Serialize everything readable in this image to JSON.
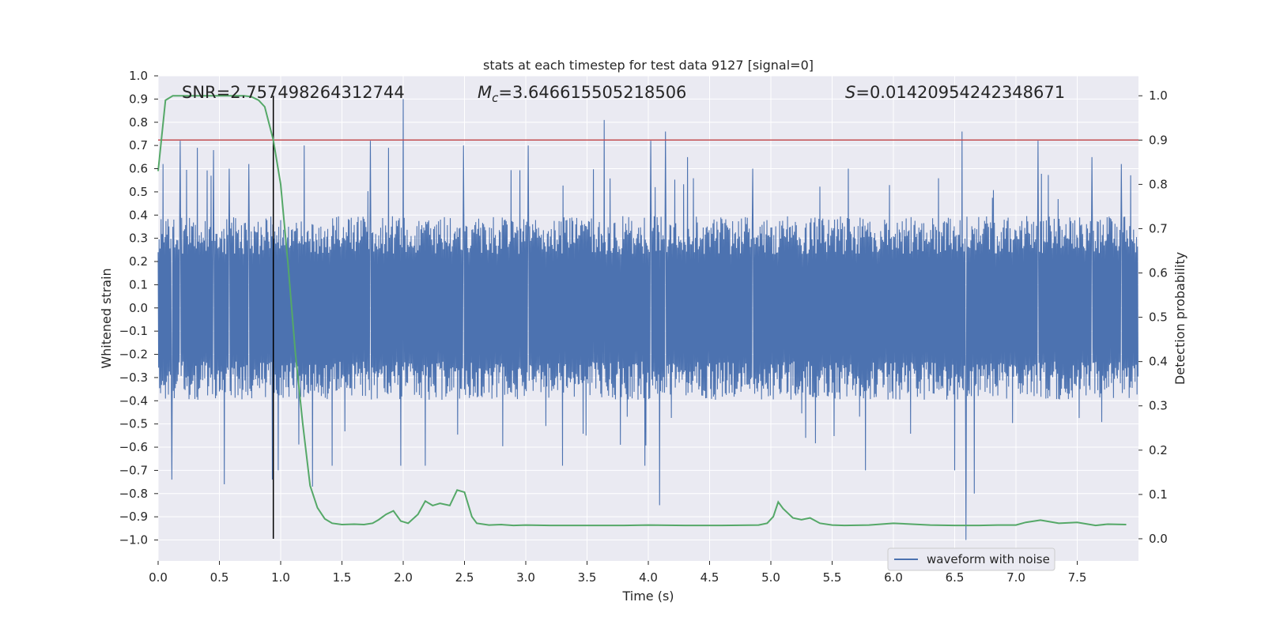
{
  "chart_data": {
    "type": "line",
    "title": "stats at each timestep for test data 9127 [signal=0]",
    "xlabel": "Time (s)",
    "ylabel_left": "Whitened strain",
    "ylabel_right": "Detection probability",
    "xlim": [
      0.0,
      8.0
    ],
    "ylim_left": [
      -1.09,
      1.0
    ],
    "ylim_right": [
      -0.05,
      1.045
    ],
    "x_ticks": [
      0.0,
      0.5,
      1.0,
      1.5,
      2.0,
      2.5,
      3.0,
      3.5,
      4.0,
      4.5,
      5.0,
      5.5,
      6.0,
      6.5,
      7.0,
      7.5
    ],
    "x_tick_labels": [
      "0.0",
      "0.5",
      "1.0",
      "1.5",
      "2.0",
      "2.5",
      "3.0",
      "3.5",
      "4.0",
      "4.5",
      "5.0",
      "5.5",
      "6.0",
      "6.5",
      "7.0",
      "7.5"
    ],
    "y_left_ticks": [
      1.0,
      0.9,
      0.8,
      0.7,
      0.6,
      0.5,
      0.4,
      0.3,
      0.2,
      0.1,
      0.0,
      -0.1,
      -0.2,
      -0.3,
      -0.4,
      -0.5,
      -0.6,
      -0.7,
      -0.8,
      -0.9,
      -1.0
    ],
    "y_left_tick_labels": [
      "1.0",
      "0.9",
      "0.8",
      "0.7",
      "0.6",
      "0.5",
      "0.4",
      "0.3",
      "0.2",
      "0.1",
      "0.0",
      "−0.1",
      "−0.2",
      "−0.3",
      "−0.4",
      "−0.5",
      "−0.6",
      "−0.7",
      "−0.8",
      "−0.9",
      "−1.0"
    ],
    "y_right_ticks": [
      1.0,
      0.9,
      0.8,
      0.7,
      0.6,
      0.5,
      0.4,
      0.3,
      0.2,
      0.1,
      0.0
    ],
    "y_right_tick_labels": [
      "1.0",
      "0.9",
      "0.8",
      "0.7",
      "0.6",
      "0.5",
      "0.4",
      "0.3",
      "0.2",
      "0.1",
      "0.0"
    ],
    "grid": true,
    "annotations": {
      "snr": "SNR=2.757498264312744",
      "mc_symbol": "M",
      "mc_sub": "c",
      "mc_value": "=3.646615505218506",
      "s_symbol": "S",
      "s_value": "=0.01420954242348671"
    },
    "threshold_probability": 0.9,
    "detection_time": 0.94,
    "waveform": {
      "name": "waveform with noise",
      "typical_envelope": 0.33,
      "peaks": [
        {
          "x": 0.04,
          "y": 0.62
        },
        {
          "x": 0.11,
          "y": -0.74
        },
        {
          "x": 0.18,
          "y": 0.72
        },
        {
          "x": 0.32,
          "y": 0.69
        },
        {
          "x": 0.45,
          "y": 0.68
        },
        {
          "x": 0.54,
          "y": -0.76
        },
        {
          "x": 0.58,
          "y": 0.6
        },
        {
          "x": 0.74,
          "y": 0.62
        },
        {
          "x": 0.93,
          "y": -0.74
        },
        {
          "x": 0.98,
          "y": -0.7
        },
        {
          "x": 1.19,
          "y": 0.7
        },
        {
          "x": 1.26,
          "y": -0.77
        },
        {
          "x": 1.42,
          "y": -0.68
        },
        {
          "x": 1.73,
          "y": 0.72
        },
        {
          "x": 1.88,
          "y": 0.69
        },
        {
          "x": 1.98,
          "y": -0.68
        },
        {
          "x": 2.0,
          "y": 0.9
        },
        {
          "x": 2.18,
          "y": -0.68
        },
        {
          "x": 2.49,
          "y": 0.7
        },
        {
          "x": 3.02,
          "y": 0.7
        },
        {
          "x": 3.3,
          "y": -0.68
        },
        {
          "x": 3.64,
          "y": 0.81
        },
        {
          "x": 3.97,
          "y": -0.68
        },
        {
          "x": 4.02,
          "y": 0.72
        },
        {
          "x": 4.09,
          "y": -0.85
        },
        {
          "x": 4.14,
          "y": 0.76
        },
        {
          "x": 4.32,
          "y": 0.65
        },
        {
          "x": 4.85,
          "y": 0.6
        },
        {
          "x": 5.63,
          "y": 0.6
        },
        {
          "x": 5.77,
          "y": -0.7
        },
        {
          "x": 6.5,
          "y": -0.7
        },
        {
          "x": 6.56,
          "y": 0.76
        },
        {
          "x": 6.59,
          "y": -1.0
        },
        {
          "x": 6.66,
          "y": -0.8
        },
        {
          "x": 7.18,
          "y": 0.72
        },
        {
          "x": 7.62,
          "y": 0.65
        },
        {
          "x": 7.86,
          "y": 0.62
        }
      ]
    },
    "probability": {
      "x": [
        0.0,
        0.06,
        0.12,
        0.2,
        0.3,
        0.4,
        0.5,
        0.6,
        0.7,
        0.76,
        0.82,
        0.87,
        0.94,
        1.0,
        1.06,
        1.12,
        1.18,
        1.24,
        1.3,
        1.36,
        1.42,
        1.5,
        1.6,
        1.68,
        1.75,
        1.8,
        1.86,
        1.92,
        1.98,
        2.04,
        2.12,
        2.18,
        2.24,
        2.3,
        2.38,
        2.44,
        2.5,
        2.56,
        2.6,
        2.7,
        2.8,
        2.9,
        3.0,
        3.2,
        3.5,
        3.8,
        4.0,
        4.3,
        4.6,
        4.9,
        4.97,
        5.02,
        5.06,
        5.1,
        5.18,
        5.25,
        5.32,
        5.4,
        5.5,
        5.6,
        5.8,
        6.0,
        6.3,
        6.5,
        6.6,
        6.7,
        6.85,
        7.0,
        7.08,
        7.2,
        7.35,
        7.5,
        7.65,
        7.75,
        7.9
      ],
      "y": [
        0.83,
        0.99,
        1.0,
        1.0,
        1.0,
        1.0,
        1.0,
        1.0,
        1.0,
        0.998,
        0.99,
        0.975,
        0.9,
        0.8,
        0.62,
        0.42,
        0.26,
        0.12,
        0.07,
        0.045,
        0.035,
        0.032,
        0.033,
        0.032,
        0.035,
        0.043,
        0.055,
        0.063,
        0.04,
        0.035,
        0.055,
        0.085,
        0.075,
        0.08,
        0.075,
        0.11,
        0.105,
        0.05,
        0.035,
        0.031,
        0.032,
        0.03,
        0.031,
        0.03,
        0.03,
        0.03,
        0.031,
        0.03,
        0.03,
        0.031,
        0.035,
        0.05,
        0.083,
        0.068,
        0.047,
        0.043,
        0.047,
        0.035,
        0.031,
        0.03,
        0.031,
        0.035,
        0.031,
        0.03,
        0.03,
        0.03,
        0.031,
        0.031,
        0.037,
        0.042,
        0.035,
        0.037,
        0.03,
        0.033,
        0.032
      ]
    },
    "colors": {
      "waveform": "#4c72b0",
      "probability": "#55a868",
      "threshold": "#c44e52",
      "detection_line": "#000000",
      "plot_background": "#eaeaf2",
      "grid": "#ffffff"
    }
  }
}
